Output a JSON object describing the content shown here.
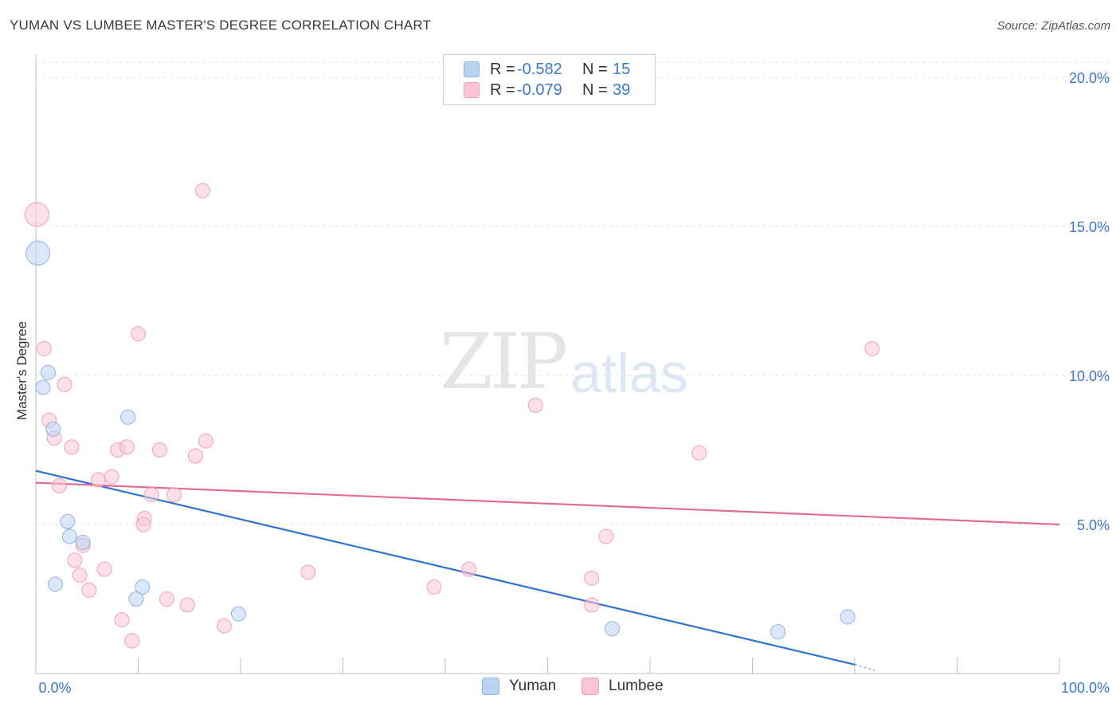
{
  "header": {
    "title": "YUMAN VS LUMBEE MASTER'S DEGREE CORRELATION CHART",
    "source": "Source: ZipAtlas.com"
  },
  "watermark": {
    "zip": "ZIP",
    "atlas": "atlas"
  },
  "legend": {
    "rows": [
      {
        "r_label": "R =",
        "r_value": "-0.582",
        "n_label": "N =",
        "n_value": "15",
        "color": "#a9c8ef"
      },
      {
        "r_label": "R =",
        "r_value": "-0.079",
        "n_label": "N =",
        "n_value": "39",
        "color": "#f7b9cb"
      }
    ]
  },
  "bottom_legend": {
    "yuman": "Yuman",
    "lumbee": "Lumbee"
  },
  "colors": {
    "yuman_fill": "#b9d3f3",
    "yuman_stroke": "#8db3e2",
    "yuman_line": "#2f72d0",
    "lumbee_fill": "#f9c4d4",
    "lumbee_stroke": "#eea0b8",
    "lumbee_line": "#e46b92",
    "tick_label": "#3b78c9",
    "grid": "#e3e3e3"
  },
  "chart_data": {
    "type": "scatter",
    "title": "YUMAN VS LUMBEE MASTER'S DEGREE CORRELATION CHART",
    "xlabel": "",
    "ylabel": "Master's Degree",
    "xlim": [
      0,
      100
    ],
    "ylim": [
      0,
      21
    ],
    "x_tick_labels": [
      "0.0%",
      "100.0%"
    ],
    "y_ticks": [
      5,
      10,
      15,
      20
    ],
    "y_tick_labels": [
      "5.0%",
      "10.0%",
      "15.0%",
      "20.0%"
    ],
    "grid": "horizontal dashed",
    "legend": "top-center",
    "series": [
      {
        "name": "Yuman",
        "r": -0.582,
        "n": 15,
        "points": [
          {
            "x": 0.2,
            "y": 14.1,
            "size": "large"
          },
          {
            "x": 1.2,
            "y": 10.1
          },
          {
            "x": 0.7,
            "y": 9.6
          },
          {
            "x": 1.7,
            "y": 8.2
          },
          {
            "x": 9.0,
            "y": 8.6
          },
          {
            "x": 3.1,
            "y": 5.1
          },
          {
            "x": 3.3,
            "y": 4.6
          },
          {
            "x": 4.6,
            "y": 4.4
          },
          {
            "x": 1.9,
            "y": 3.0
          },
          {
            "x": 10.4,
            "y": 2.9
          },
          {
            "x": 9.8,
            "y": 2.5
          },
          {
            "x": 19.8,
            "y": 2.0
          },
          {
            "x": 56.3,
            "y": 1.5
          },
          {
            "x": 72.5,
            "y": 1.4
          },
          {
            "x": 79.3,
            "y": 1.9
          }
        ],
        "trend": {
          "x1": 0,
          "y1": 6.8,
          "x2": 80,
          "y2": 0.3,
          "dashed_to_x": 82,
          "dashed_to_y": 0.1
        }
      },
      {
        "name": "Lumbee",
        "r": -0.079,
        "n": 39,
        "points": [
          {
            "x": 0.1,
            "y": 15.4,
            "size": "large"
          },
          {
            "x": 16.3,
            "y": 16.2
          },
          {
            "x": 10.0,
            "y": 11.4
          },
          {
            "x": 0.8,
            "y": 10.9
          },
          {
            "x": 2.8,
            "y": 9.7
          },
          {
            "x": 1.3,
            "y": 8.5
          },
          {
            "x": 1.8,
            "y": 7.9
          },
          {
            "x": 3.5,
            "y": 7.6
          },
          {
            "x": 8.0,
            "y": 7.5
          },
          {
            "x": 8.9,
            "y": 7.6
          },
          {
            "x": 12.1,
            "y": 7.5
          },
          {
            "x": 16.6,
            "y": 7.8
          },
          {
            "x": 15.6,
            "y": 7.3
          },
          {
            "x": 6.1,
            "y": 6.5
          },
          {
            "x": 7.4,
            "y": 6.6
          },
          {
            "x": 2.3,
            "y": 6.3
          },
          {
            "x": 11.3,
            "y": 6.0
          },
          {
            "x": 13.5,
            "y": 6.0
          },
          {
            "x": 10.6,
            "y": 5.2
          },
          {
            "x": 10.5,
            "y": 5.0
          },
          {
            "x": 4.6,
            "y": 4.3
          },
          {
            "x": 3.8,
            "y": 3.8
          },
          {
            "x": 4.3,
            "y": 3.3
          },
          {
            "x": 6.7,
            "y": 3.5
          },
          {
            "x": 5.2,
            "y": 2.8
          },
          {
            "x": 12.8,
            "y": 2.5
          },
          {
            "x": 14.8,
            "y": 2.3
          },
          {
            "x": 8.4,
            "y": 1.8
          },
          {
            "x": 18.4,
            "y": 1.6
          },
          {
            "x": 9.4,
            "y": 1.1
          },
          {
            "x": 26.6,
            "y": 3.4
          },
          {
            "x": 38.9,
            "y": 2.9
          },
          {
            "x": 42.3,
            "y": 3.5
          },
          {
            "x": 48.8,
            "y": 9.0
          },
          {
            "x": 55.7,
            "y": 4.6
          },
          {
            "x": 54.3,
            "y": 3.2
          },
          {
            "x": 54.3,
            "y": 2.3
          },
          {
            "x": 64.8,
            "y": 7.4
          },
          {
            "x": 81.7,
            "y": 10.9
          }
        ],
        "trend": {
          "x1": 0,
          "y1": 6.4,
          "x2": 100,
          "y2": 5.0
        }
      }
    ]
  }
}
